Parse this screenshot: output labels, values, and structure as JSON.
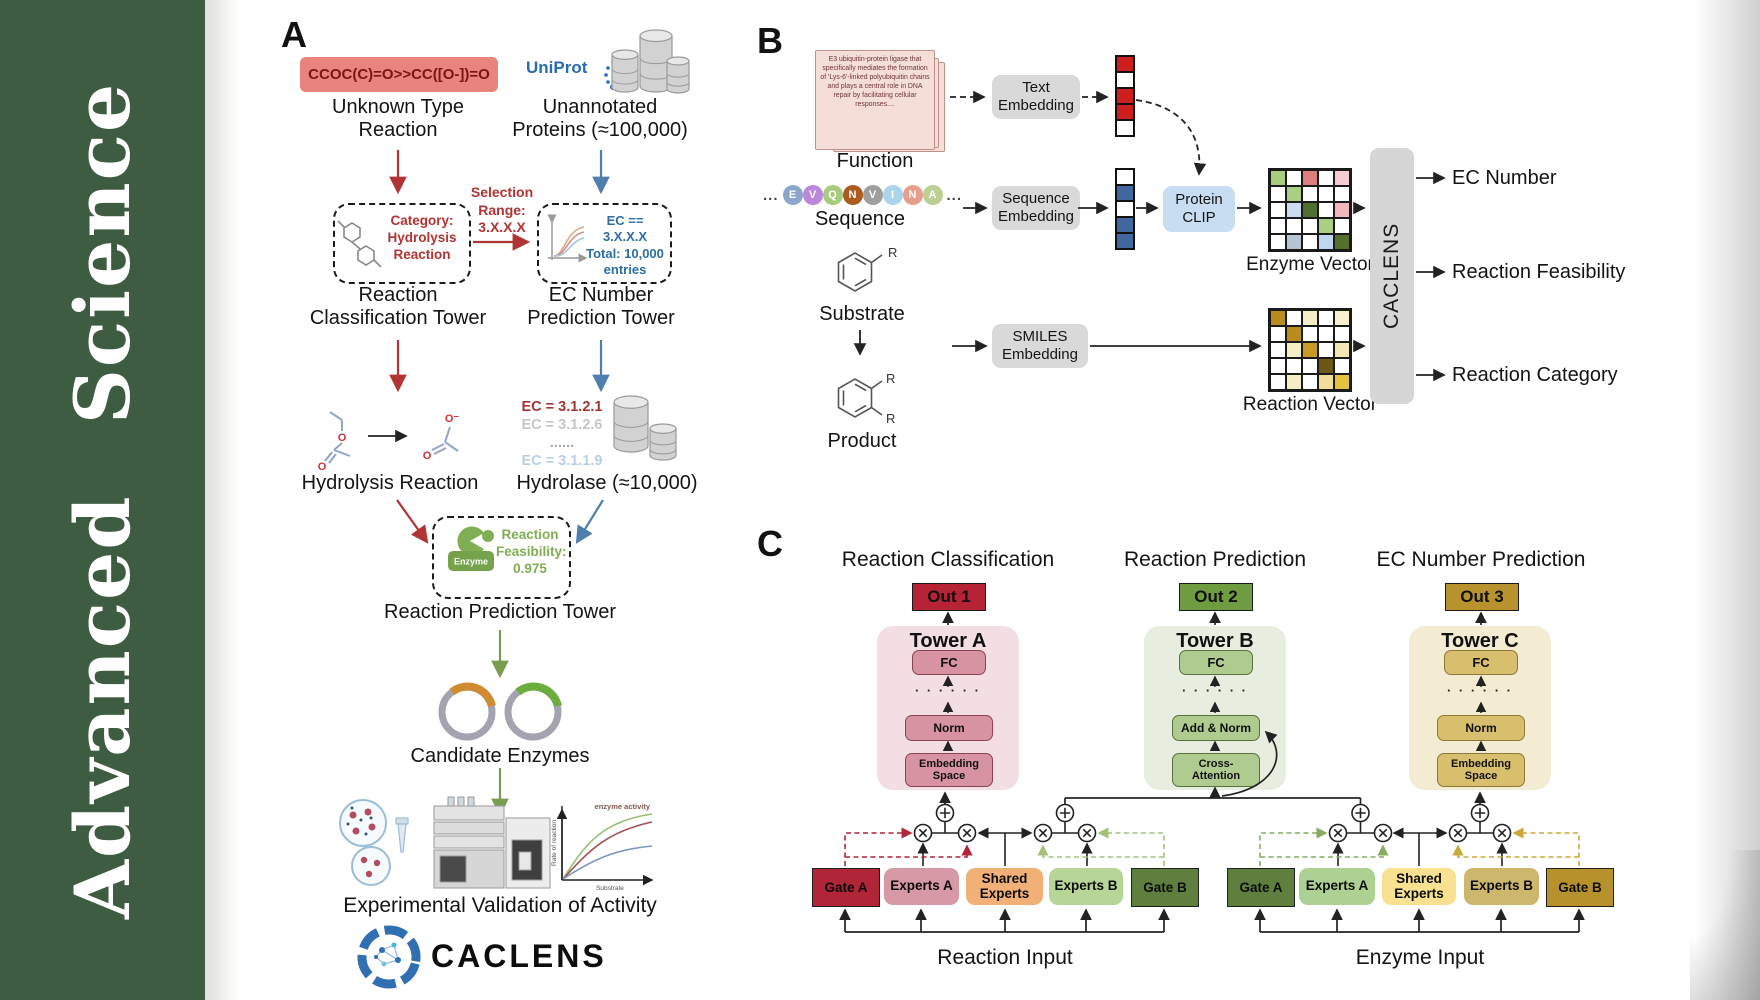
{
  "journal": {
    "name": "Advanced Science"
  },
  "palette": {
    "sidebar_green": "#3e5c41",
    "accent_red": "#b03434",
    "accent_blue": "#4e7fae",
    "accent_green": "#7a9c50",
    "uniprot_blue": "#2b6cb0"
  },
  "panelA": {
    "label": "A",
    "smiles": "CCOC(C)=O>>CC([O-])=O",
    "uniprot": "UniProt",
    "unknown_reaction": "Unknown Type\nReaction",
    "unannotated": "Unannotated\nProteins (≈100,000)",
    "selection": "Selection\nRange:\n3.X.X.X",
    "category_box": "Category:\nHydrolysis\nReaction",
    "ec_box": "EC == 3.X.X.X\nTotal: 10,000\nentries",
    "classification_tower": "Reaction\nClassification Tower",
    "ec_tower": "EC Number\nPrediction Tower",
    "hydrolysis": "Hydrolysis Reaction",
    "ec_list": [
      {
        "text": "EC = 3.1.2.1",
        "color": "#a33535",
        "bold": true
      },
      {
        "text": "EC = 3.1.2.6",
        "color": "#c6c6c6",
        "bold": false
      },
      {
        "text": "......",
        "color": "#ababab",
        "bold": true
      },
      {
        "text": "EC = 3.1.1.9",
        "color": "#b9cfe4",
        "bold": false
      }
    ],
    "hydrolase": "Hydrolase (≈10,000)",
    "feasibility": "Reaction\nFeasibility:\n0.975",
    "enzyme_icon_label": "Enzyme",
    "prediction_tower": "Reaction Prediction Tower",
    "candidate": "Candidate Enzymes",
    "experimental": "Experimental Validation of Activity",
    "plot": {
      "ylabel": "Rate of reaction",
      "xlabel": "Substrate",
      "annotation": "enzyme activity"
    }
  },
  "panelB": {
    "label": "B",
    "function_text": "E3 ubiquitin-protein ligase that specifically mediates the formation of 'Lys-6'-linked polyubiquitin chains and plays a central role in DNA repair by facilitating cellular responses....",
    "function_label": "Function",
    "ellipsis": "...",
    "sequence_label": "Sequence",
    "sequence": [
      {
        "letter": "E",
        "color": "#8ca6cb"
      },
      {
        "letter": "V",
        "color": "#bb87dd"
      },
      {
        "letter": "Q",
        "color": "#a9cb7e"
      },
      {
        "letter": "N",
        "color": "#ad5a1e"
      },
      {
        "letter": "V",
        "color": "#9e9e9e"
      },
      {
        "letter": "I",
        "color": "#aad4ea"
      },
      {
        "letter": "N",
        "color": "#e79f8b"
      },
      {
        "letter": "A",
        "color": "#bccf92"
      }
    ],
    "text_embedding": "Text\nEmbedding",
    "sequence_embedding": "Sequence\nEmbedding",
    "smiles_embedding": "SMILES\nEmbedding",
    "protein_clip": "Protein\nCLIP",
    "text_vector": [
      "#cc2020",
      "#ffffff",
      "#cc2020",
      "#cc2020",
      "#ffffff"
    ],
    "seq_vector": [
      "#ffffff",
      "#40679f",
      "#ffffff",
      "#40679f",
      "#40679f"
    ],
    "substrate": "Substrate",
    "product": "Product",
    "r_label": "R",
    "enzyme_vector_label": "Enzyme Vector",
    "reaction_vector_label": "Reaction Vector",
    "enzyme_matrix": [
      [
        "#a9cc80",
        "#ffffff",
        "#dd7f7f",
        "#ffffff",
        "#f6cdd2"
      ],
      [
        "#ffffff",
        "#abce84",
        "#ffffff",
        "#ffffff",
        "#ffffff"
      ],
      [
        "#ffffff",
        "#ccdcee",
        "#4e7030",
        "#ffffff",
        "#f2b6bd"
      ],
      [
        "#ffffff",
        "#ffffff",
        "#ffffff",
        "#abce84",
        "#ffffff"
      ],
      [
        "#ffffff",
        "#b5c3d2",
        "#ffffff",
        "#c0d6ee",
        "#53702c"
      ]
    ],
    "reaction_matrix": [
      [
        "#b98c1e",
        "#ffffff",
        "#f6eec6",
        "#ffffff",
        "#f8f0cf"
      ],
      [
        "#ffffff",
        "#b98c1e",
        "#ffffff",
        "#ffffff",
        "#ffffff"
      ],
      [
        "#ffffff",
        "#f6eec6",
        "#c79b25",
        "#ffffff",
        "#f3e7b8"
      ],
      [
        "#ffffff",
        "#ffffff",
        "#ffffff",
        "#6b5812",
        "#ffffff"
      ],
      [
        "#ffffff",
        "#f6eec6",
        "#ffffff",
        "#f0dd9a",
        "#e2c23f"
      ]
    ],
    "caclens_box": "CACLENS",
    "outputs": [
      "EC Number",
      "Reaction Feasibility",
      "Reaction Category"
    ]
  },
  "panelC": {
    "label": "C",
    "headings": [
      "Reaction Classification",
      "Reaction Prediction",
      "EC Number Prediction"
    ],
    "outs": [
      "Out 1",
      "Out 2",
      "Out 3"
    ],
    "towers": [
      {
        "title": "Tower A",
        "fc": "FC",
        "dots": "· · · · · ·",
        "mid": "Norm",
        "bottom": "Embedding\nSpace"
      },
      {
        "title": "Tower B",
        "fc": "FC",
        "dots": "· · · · · ·",
        "mid": "Add & Norm",
        "bottom": "Cross-\nAttention"
      },
      {
        "title": "Tower C",
        "fc": "FC",
        "dots": "· · · · · ·",
        "mid": "Norm",
        "bottom": "Embedding\nSpace"
      }
    ],
    "reaction_group": {
      "gate_a": "Gate A",
      "experts_a": "Experts A",
      "shared": "Shared\nExperts",
      "experts_b": "Experts B",
      "gate_b": "Gate B",
      "input": "Reaction Input"
    },
    "enzyme_group": {
      "gate_a": "Gate A",
      "experts_a": "Experts A",
      "shared": "Shared\nExperts",
      "experts_b": "Experts B",
      "gate_b": "Gate B",
      "input": "Enzyme Input"
    }
  },
  "logo": {
    "text": "CACLENS"
  }
}
